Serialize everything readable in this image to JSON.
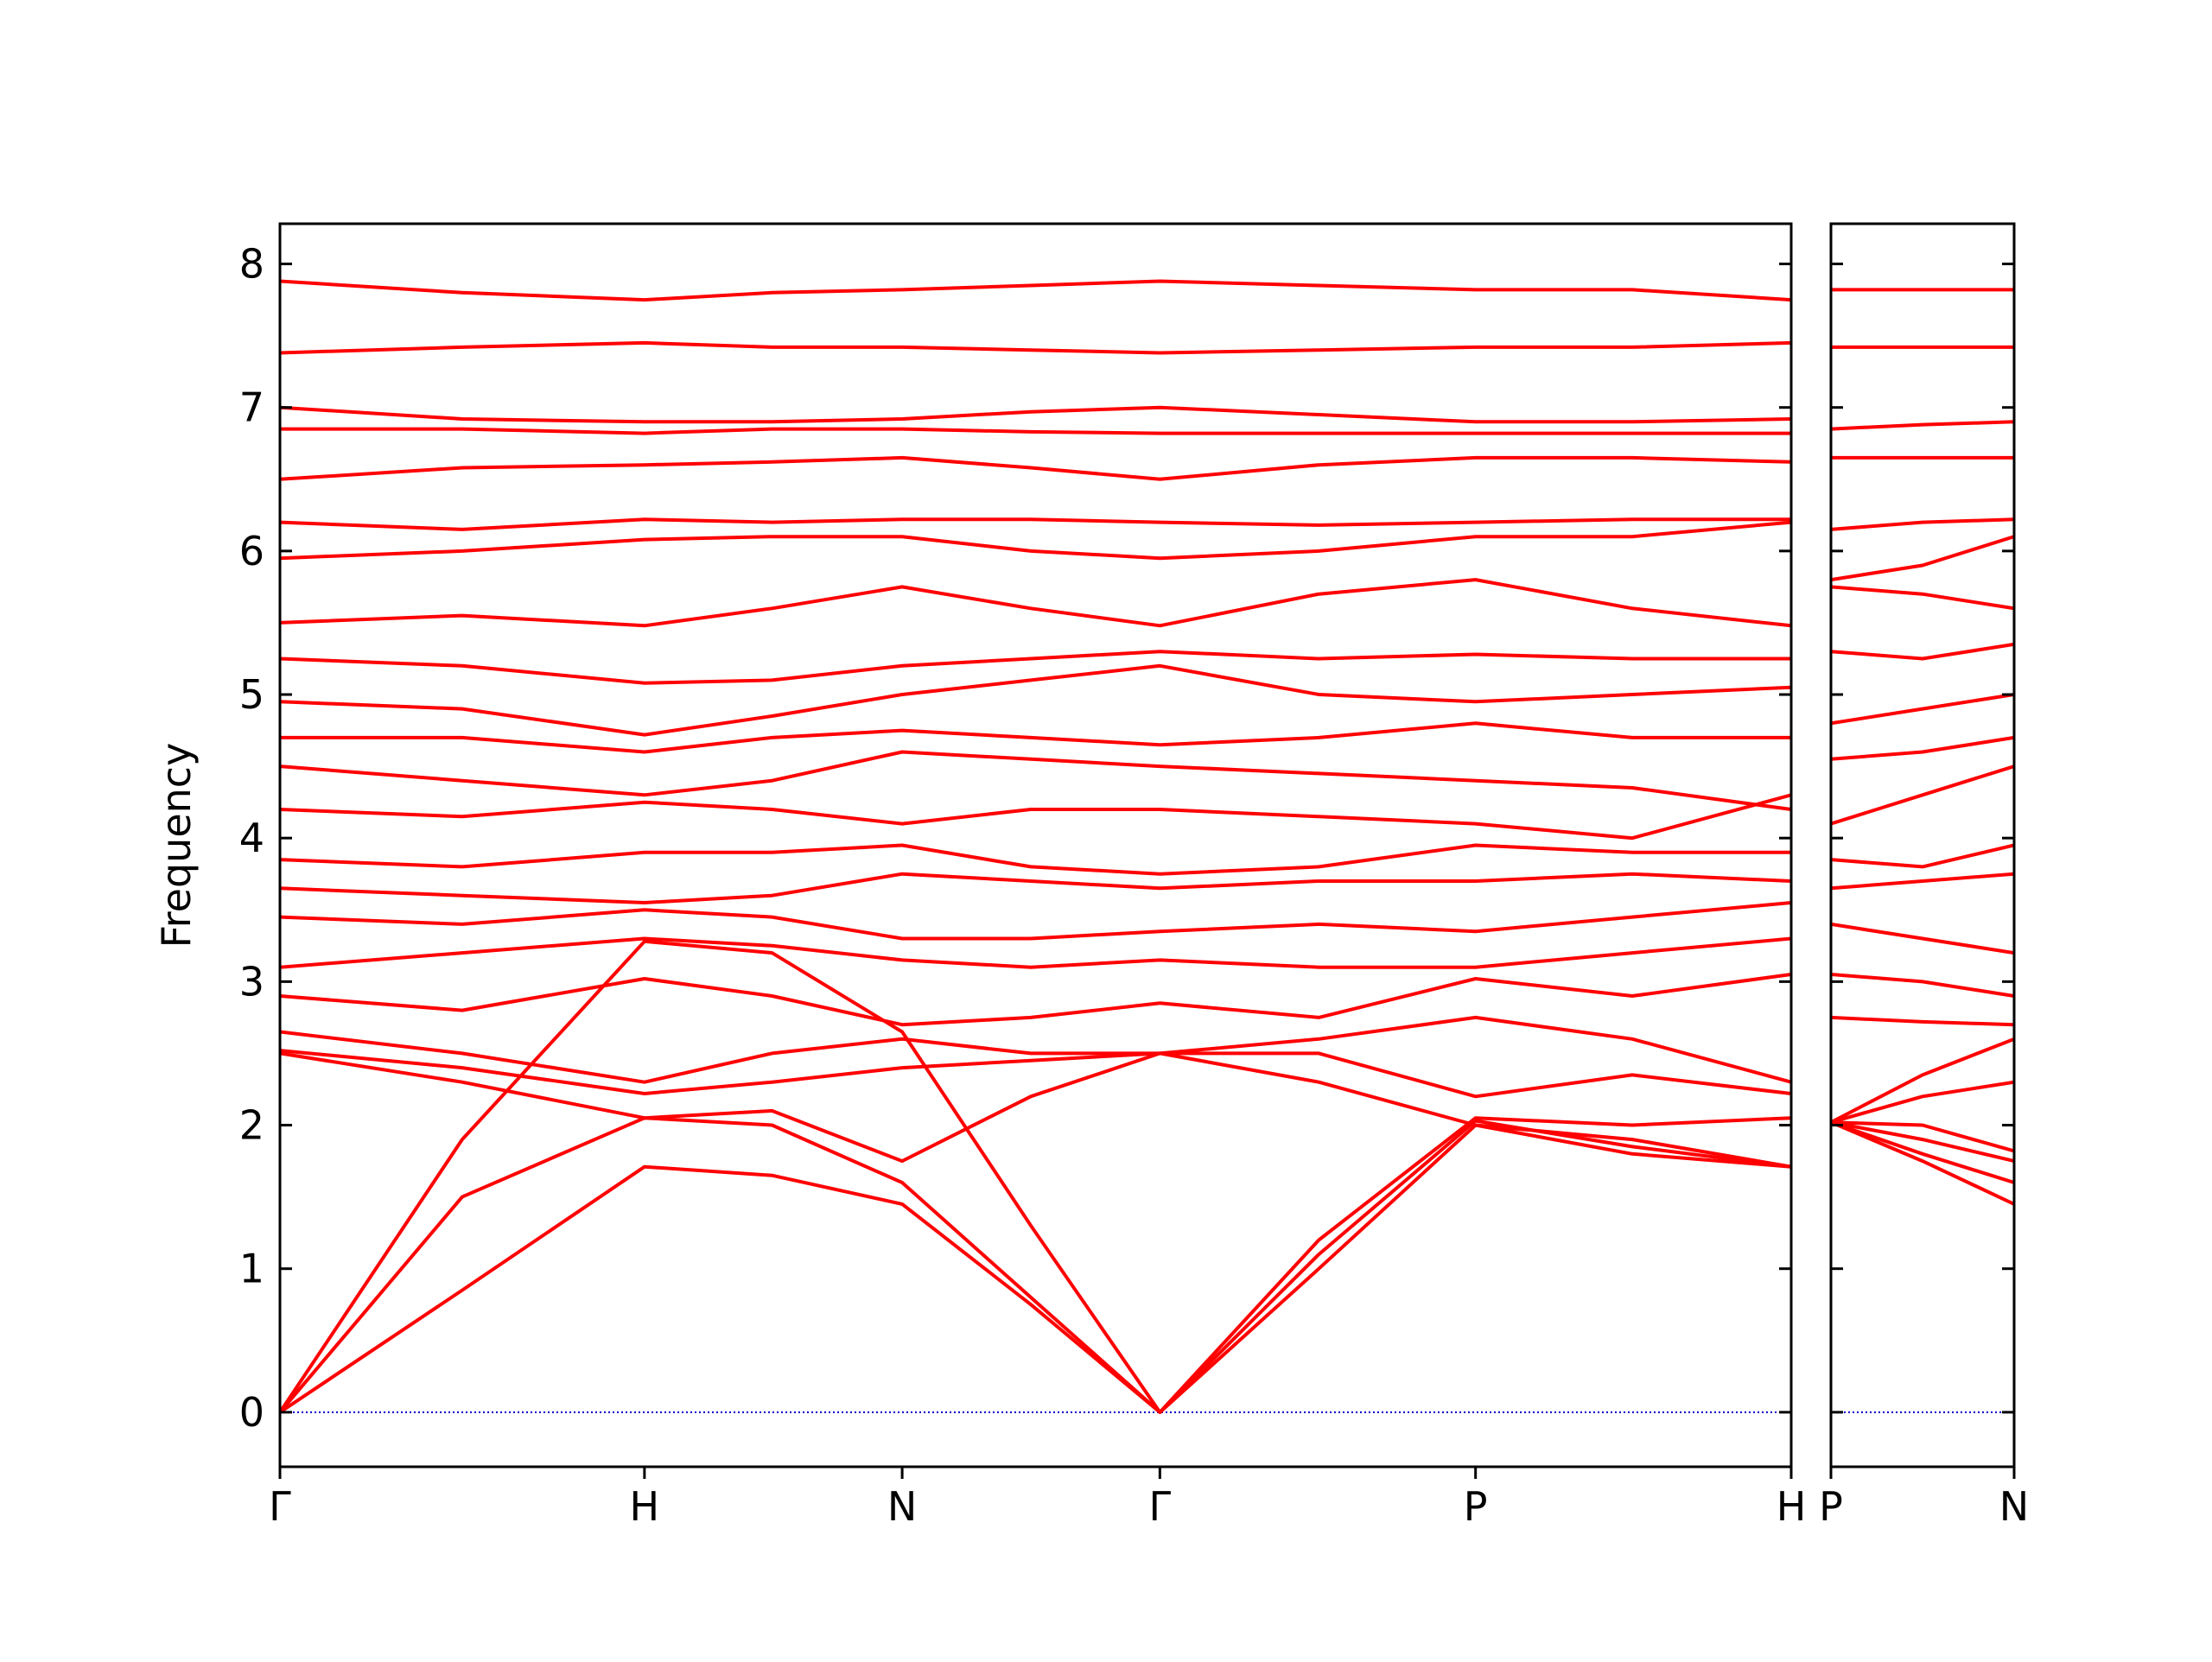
{
  "chart_data": [
    {
      "type": "line",
      "ylabel": "Frequency",
      "color": "#ff0000",
      "x": [
        0,
        0.5,
        1,
        1.35,
        1.707,
        2.06,
        2.414,
        2.85,
        3.28,
        3.71,
        4.146
      ],
      "xlim": [
        0,
        4.146
      ],
      "xticks": [
        {
          "value": 0,
          "label": "Γ"
        },
        {
          "value": 1,
          "label": "H"
        },
        {
          "value": 1.707,
          "label": "N"
        },
        {
          "value": 2.414,
          "label": "Γ"
        },
        {
          "value": 3.28,
          "label": "P"
        },
        {
          "value": 4.146,
          "label": "H"
        }
      ],
      "ylim": [
        -0.38,
        8.28
      ],
      "yticks": [
        0,
        1,
        2,
        3,
        4,
        5,
        6,
        7,
        8
      ],
      "show_ytick_labels": true,
      "reference_line": {
        "value": 0,
        "color": "#0000cc",
        "style": "dotted"
      },
      "series": [
        {
          "values": [
            0,
            0.85,
            1.71,
            1.65,
            1.45,
            0.75,
            0,
            1.0,
            2.0,
            1.8,
            1.71
          ]
        },
        {
          "values": [
            0,
            1.9,
            3.28,
            3.2,
            2.65,
            1.3,
            0,
            1.1,
            2.03,
            1.85,
            1.71
          ]
        },
        {
          "values": [
            0,
            1.5,
            2.05,
            2.0,
            1.6,
            0.8,
            0,
            1.2,
            2.05,
            2.0,
            2.05
          ]
        },
        {
          "values": [
            2.5,
            2.3,
            2.05,
            2.1,
            1.75,
            2.2,
            2.5,
            2.3,
            2.0,
            1.9,
            1.71
          ]
        },
        {
          "values": [
            2.52,
            2.4,
            2.22,
            2.3,
            2.4,
            2.45,
            2.5,
            2.5,
            2.2,
            2.35,
            2.22
          ]
        },
        {
          "values": [
            2.65,
            2.5,
            2.3,
            2.5,
            2.6,
            2.5,
            2.5,
            2.6,
            2.75,
            2.6,
            2.3
          ]
        },
        {
          "values": [
            2.9,
            2.8,
            3.02,
            2.9,
            2.7,
            2.75,
            2.85,
            2.75,
            3.02,
            2.9,
            3.05
          ]
        },
        {
          "values": [
            3.1,
            3.2,
            3.3,
            3.25,
            3.15,
            3.1,
            3.15,
            3.1,
            3.1,
            3.2,
            3.3
          ]
        },
        {
          "values": [
            3.45,
            3.4,
            3.5,
            3.45,
            3.3,
            3.3,
            3.35,
            3.4,
            3.35,
            3.45,
            3.55
          ]
        },
        {
          "values": [
            3.65,
            3.6,
            3.55,
            3.6,
            3.75,
            3.7,
            3.65,
            3.7,
            3.7,
            3.75,
            3.7
          ]
        },
        {
          "values": [
            3.85,
            3.8,
            3.9,
            3.9,
            3.95,
            3.8,
            3.75,
            3.8,
            3.95,
            3.9,
            3.9
          ]
        },
        {
          "values": [
            4.2,
            4.15,
            4.25,
            4.2,
            4.1,
            4.2,
            4.2,
            4.15,
            4.1,
            4.0,
            4.3
          ]
        },
        {
          "values": [
            4.5,
            4.4,
            4.3,
            4.4,
            4.6,
            4.55,
            4.5,
            4.45,
            4.4,
            4.35,
            4.2
          ]
        },
        {
          "values": [
            4.7,
            4.7,
            4.6,
            4.7,
            4.75,
            4.7,
            4.65,
            4.7,
            4.8,
            4.7,
            4.7
          ]
        },
        {
          "values": [
            4.95,
            4.9,
            4.72,
            4.85,
            5.0,
            5.1,
            5.2,
            5.0,
            4.95,
            5.0,
            5.05
          ]
        },
        {
          "values": [
            5.25,
            5.2,
            5.08,
            5.1,
            5.2,
            5.25,
            5.3,
            5.25,
            5.28,
            5.25,
            5.25
          ]
        },
        {
          "values": [
            5.5,
            5.55,
            5.48,
            5.6,
            5.75,
            5.6,
            5.48,
            5.7,
            5.8,
            5.6,
            5.48
          ]
        },
        {
          "values": [
            5.95,
            6.0,
            6.08,
            6.1,
            6.1,
            6.0,
            5.95,
            6.0,
            6.1,
            6.1,
            6.2
          ]
        },
        {
          "values": [
            6.2,
            6.15,
            6.22,
            6.2,
            6.22,
            6.22,
            6.2,
            6.18,
            6.2,
            6.22,
            6.22
          ]
        },
        {
          "values": [
            6.5,
            6.58,
            6.6,
            6.62,
            6.65,
            6.58,
            6.5,
            6.6,
            6.65,
            6.65,
            6.62
          ]
        },
        {
          "values": [
            6.85,
            6.85,
            6.82,
            6.85,
            6.85,
            6.83,
            6.82,
            6.82,
            6.82,
            6.82,
            6.82
          ]
        },
        {
          "values": [
            7.0,
            6.92,
            6.9,
            6.9,
            6.92,
            6.97,
            7.0,
            6.95,
            6.9,
            6.9,
            6.92
          ]
        },
        {
          "values": [
            7.38,
            7.42,
            7.45,
            7.42,
            7.42,
            7.4,
            7.38,
            7.4,
            7.42,
            7.42,
            7.45
          ]
        },
        {
          "values": [
            7.88,
            7.8,
            7.75,
            7.8,
            7.82,
            7.85,
            7.88,
            7.85,
            7.82,
            7.82,
            7.75
          ]
        }
      ]
    },
    {
      "type": "line",
      "color": "#ff0000",
      "x": [
        0,
        0.25,
        0.5
      ],
      "xlim": [
        0,
        0.5
      ],
      "xticks": [
        {
          "value": 0,
          "label": "P"
        },
        {
          "value": 0.5,
          "label": "N"
        }
      ],
      "ylim": [
        -0.38,
        8.28
      ],
      "yticks": [
        0,
        1,
        2,
        3,
        4,
        5,
        6,
        7,
        8
      ],
      "show_ytick_labels": false,
      "reference_line": {
        "value": 0,
        "color": "#0000cc",
        "style": "dotted"
      },
      "series": [
        {
          "values": [
            2.02,
            1.75,
            1.45
          ]
        },
        {
          "values": [
            2.02,
            1.8,
            1.6
          ]
        },
        {
          "values": [
            2.02,
            1.9,
            1.75
          ]
        },
        {
          "values": [
            2.02,
            2.0,
            1.82
          ]
        },
        {
          "values": [
            2.02,
            2.2,
            2.3
          ]
        },
        {
          "values": [
            2.02,
            2.35,
            2.6
          ]
        },
        {
          "values": [
            2.75,
            2.72,
            2.7
          ]
        },
        {
          "values": [
            3.05,
            3.0,
            2.9
          ]
        },
        {
          "values": [
            3.4,
            3.3,
            3.2
          ]
        },
        {
          "values": [
            3.65,
            3.7,
            3.75
          ]
        },
        {
          "values": [
            3.85,
            3.8,
            3.95
          ]
        },
        {
          "values": [
            4.1,
            4.3,
            4.5
          ]
        },
        {
          "values": [
            4.55,
            4.6,
            4.7
          ]
        },
        {
          "values": [
            4.8,
            4.9,
            5.0
          ]
        },
        {
          "values": [
            5.3,
            5.25,
            5.35
          ]
        },
        {
          "values": [
            5.75,
            5.7,
            5.6
          ]
        },
        {
          "values": [
            5.8,
            5.9,
            6.1
          ]
        },
        {
          "values": [
            6.15,
            6.2,
            6.22
          ]
        },
        {
          "values": [
            6.65,
            6.65,
            6.65
          ]
        },
        {
          "values": [
            6.85,
            6.88,
            6.9
          ]
        },
        {
          "values": [
            7.42,
            7.42,
            7.42
          ]
        },
        {
          "values": [
            7.82,
            7.82,
            7.82
          ]
        }
      ]
    }
  ]
}
